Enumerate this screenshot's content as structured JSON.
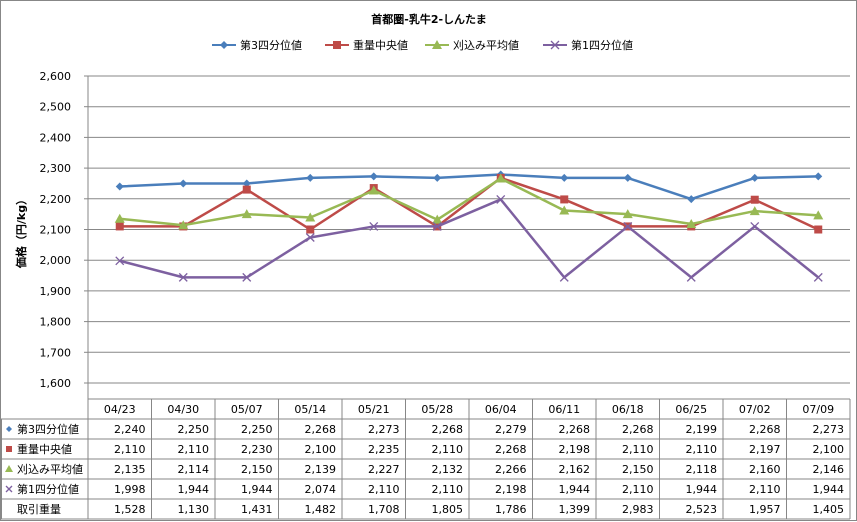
{
  "chart_data": {
    "type": "line",
    "title": "首都圏-乳牛2-しんたま",
    "xlabel": "",
    "ylabel": "価格（円/kg）",
    "ylim": [
      1600,
      2600
    ],
    "yticks": [
      "1,600",
      "1,700",
      "1,800",
      "1,900",
      "2,000",
      "2,100",
      "2,200",
      "2,300",
      "2,400",
      "2,500",
      "2,600"
    ],
    "ytick_values": [
      1600,
      1700,
      1800,
      1900,
      2000,
      2100,
      2200,
      2300,
      2400,
      2500,
      2600
    ],
    "grid": true,
    "legend": "top",
    "categories": [
      "04/23",
      "04/30",
      "05/07",
      "05/14",
      "05/21",
      "05/28",
      "06/04",
      "06/11",
      "06/18",
      "06/25",
      "07/02",
      "07/09"
    ],
    "series": [
      {
        "name": "第3四分位値",
        "color": "#4A7EBB",
        "marker": "diamond-icon",
        "values": [
          2240,
          2250,
          2250,
          2268,
          2273,
          2268,
          2279,
          2268,
          2268,
          2199,
          2268,
          2273
        ],
        "labels": [
          "2,240",
          "2,250",
          "2,250",
          "2,268",
          "2,273",
          "2,268",
          "2,279",
          "2,268",
          "2,268",
          "2,199",
          "2,268",
          "2,273"
        ]
      },
      {
        "name": "重量中央値",
        "color": "#BE4B48",
        "marker": "square-icon",
        "values": [
          2110,
          2110,
          2230,
          2100,
          2235,
          2110,
          2268,
          2198,
          2110,
          2110,
          2197,
          2100
        ],
        "labels": [
          "2,110",
          "2,110",
          "2,230",
          "2,100",
          "2,235",
          "2,110",
          "2,268",
          "2,198",
          "2,110",
          "2,110",
          "2,197",
          "2,100"
        ]
      },
      {
        "name": "刈込み平均値",
        "color": "#98B954",
        "marker": "triangle-icon",
        "values": [
          2135,
          2114,
          2150,
          2139,
          2227,
          2132,
          2266,
          2162,
          2150,
          2118,
          2160,
          2146
        ],
        "labels": [
          "2,135",
          "2,114",
          "2,150",
          "2,139",
          "2,227",
          "2,132",
          "2,266",
          "2,162",
          "2,150",
          "2,118",
          "2,160",
          "2,146"
        ]
      },
      {
        "name": "第1四分位値",
        "color": "#7D60A0",
        "marker": "x-mark-icon",
        "values": [
          1998,
          1944,
          1944,
          2074,
          2110,
          2110,
          2198,
          1944,
          2110,
          1944,
          2110,
          1944
        ],
        "labels": [
          "1,998",
          "1,944",
          "1,944",
          "2,074",
          "2,110",
          "2,110",
          "2,198",
          "1,944",
          "2,110",
          "1,944",
          "2,110",
          "1,944"
        ]
      }
    ],
    "table_extra_rows": [
      {
        "name": "取引重量",
        "values": [
          1528,
          1130,
          1431,
          1482,
          1708,
          1805,
          1786,
          1399,
          2983,
          2523,
          1957,
          1405
        ],
        "labels": [
          "1,528",
          "1,130",
          "1,431",
          "1,482",
          "1,708",
          "1,805",
          "1,786",
          "1,399",
          "2,983",
          "2,523",
          "1,957",
          "1,405"
        ]
      }
    ]
  }
}
